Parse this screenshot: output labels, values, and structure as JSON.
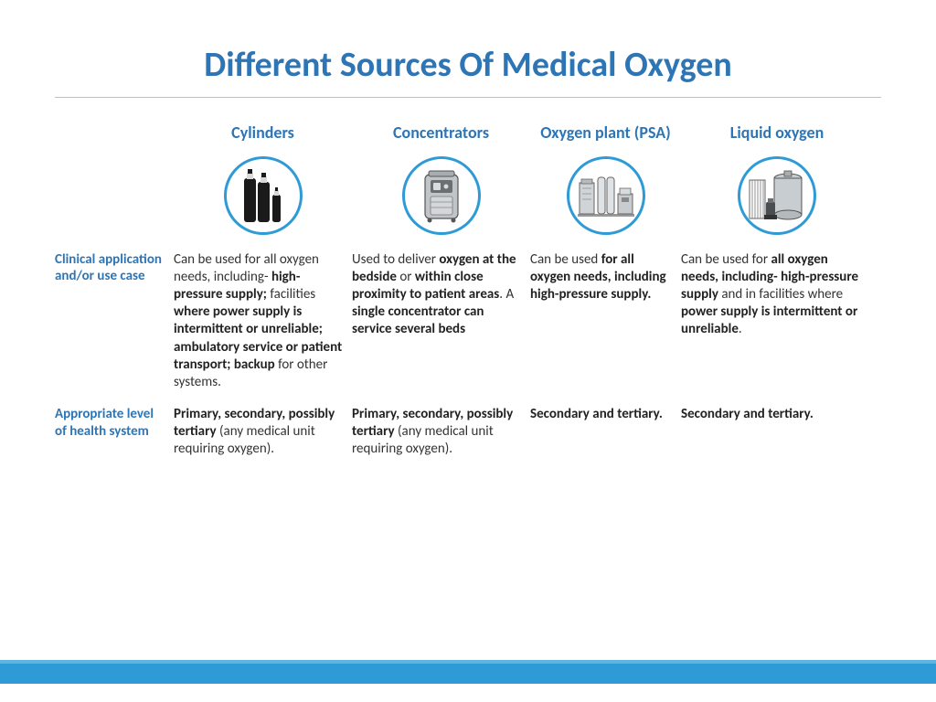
{
  "type": "infographic-table",
  "background_color": "#ffffff",
  "title": {
    "text": "Different Sources Of Medical Oxygen",
    "color": "#2e75b6",
    "fontsize": 38,
    "fontweight": 700
  },
  "accent_color": "#2e75b6",
  "circle_border_color": "#2e9bd6",
  "columns": [
    {
      "label": "Cylinders"
    },
    {
      "label": "Concentrators"
    },
    {
      "label": "Oxygen plant (PSA)"
    },
    {
      "label": "Liquid oxygen"
    }
  ],
  "rows": [
    {
      "label": "Clinical application and/or use case"
    },
    {
      "label": "Appropriate level of health system"
    }
  ],
  "cells": {
    "r0c0": "Can be used for all oxygen needs, including- <b>high-pressure supply;</b> facilities <b>where power supply is intermittent or unreliable; ambulatory service or patient transport; backup</b> for other systems.",
    "r0c1": "Used to deliver <b>oxygen at the bedside</b> or <b>within close proximity to patient areas</b>. A <b>single concentrator can service several beds</b>",
    "r0c2": "Can be used <b>for all oxygen needs, including high-pressure supply.</b>",
    "r0c3": "Can be used for <b>all oxygen needs, including- high-pressure supply</b> and in facilities where <b>power supply is intermittent or unreliable</b>.",
    "r1c0": "<b>Primary, secondary, possibly tertiary</b> (any medical unit requiring oxygen).",
    "r1c1": "<b>Primary, secondary, possibly tertiary</b> (any medical unit requiring oxygen).",
    "r1c2": "<b>Secondary and tertiary.</b>",
    "r1c3": "<b>Secondary and tertiary.</b>"
  },
  "footer_bar": {
    "color": "#2e9bd6",
    "top_border": "#5db4e0",
    "height": 26
  },
  "icons": {
    "cylinders": {
      "fill": "#1a1a1a",
      "cap": "#e0e0e0"
    },
    "concentrator": {
      "fill": "#bfc5c9",
      "stroke": "#555",
      "dark": "#6b6f72"
    },
    "plant": {
      "fill": "#d0d4d7",
      "stroke": "#666"
    },
    "liquid": {
      "fill": "#c8cdd1",
      "stroke": "#555",
      "dark": "#4a4e52"
    }
  }
}
